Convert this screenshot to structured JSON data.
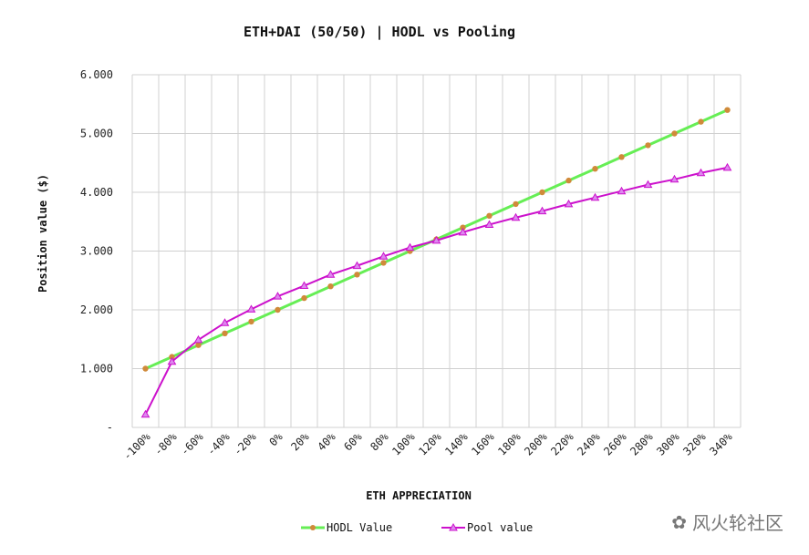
{
  "chart_data": {
    "type": "line",
    "title": "ETH+DAI (50/50) | HODL vs Pooling",
    "xlabel": "ETH APPRECIATION",
    "ylabel": "Position value ($)",
    "categories": [
      "-100%",
      "-80%",
      "-60%",
      "-40%",
      "-20%",
      "0%",
      "20%",
      "40%",
      "60%",
      "80%",
      "100%",
      "120%",
      "140%",
      "160%",
      "180%",
      "200%",
      "220%",
      "240%",
      "260%",
      "280%",
      "300%",
      "320%",
      "340%"
    ],
    "ylim": [
      0,
      6000
    ],
    "yticks": [
      0,
      1000,
      2000,
      3000,
      4000,
      5000,
      6000
    ],
    "ytick_labels": [
      "-",
      "1.000",
      "2.000",
      "3.000",
      "4.000",
      "5.000",
      "6.000"
    ],
    "grid": true,
    "legend_position": "bottom",
    "series": [
      {
        "name": "HODL Value",
        "color": "#66ee55",
        "marker_color": "#d08a3a",
        "marker": "circle",
        "values": [
          1000,
          1200,
          1400,
          1600,
          1800,
          2000,
          2200,
          2400,
          2600,
          2800,
          3000,
          3200,
          3400,
          3600,
          3800,
          4000,
          4200,
          4400,
          4600,
          4800,
          5000,
          5200,
          5400
        ]
      },
      {
        "name": "Pool value",
        "color": "#cc11cc",
        "marker_color": "#dd88ee",
        "marker": "triangle",
        "values": [
          220,
          1120,
          1490,
          1780,
          2010,
          2230,
          2410,
          2600,
          2750,
          2910,
          3060,
          3180,
          3320,
          3450,
          3570,
          3680,
          3800,
          3910,
          4020,
          4130,
          4220,
          4330,
          4420
        ]
      }
    ]
  },
  "watermark": "风火轮社区"
}
